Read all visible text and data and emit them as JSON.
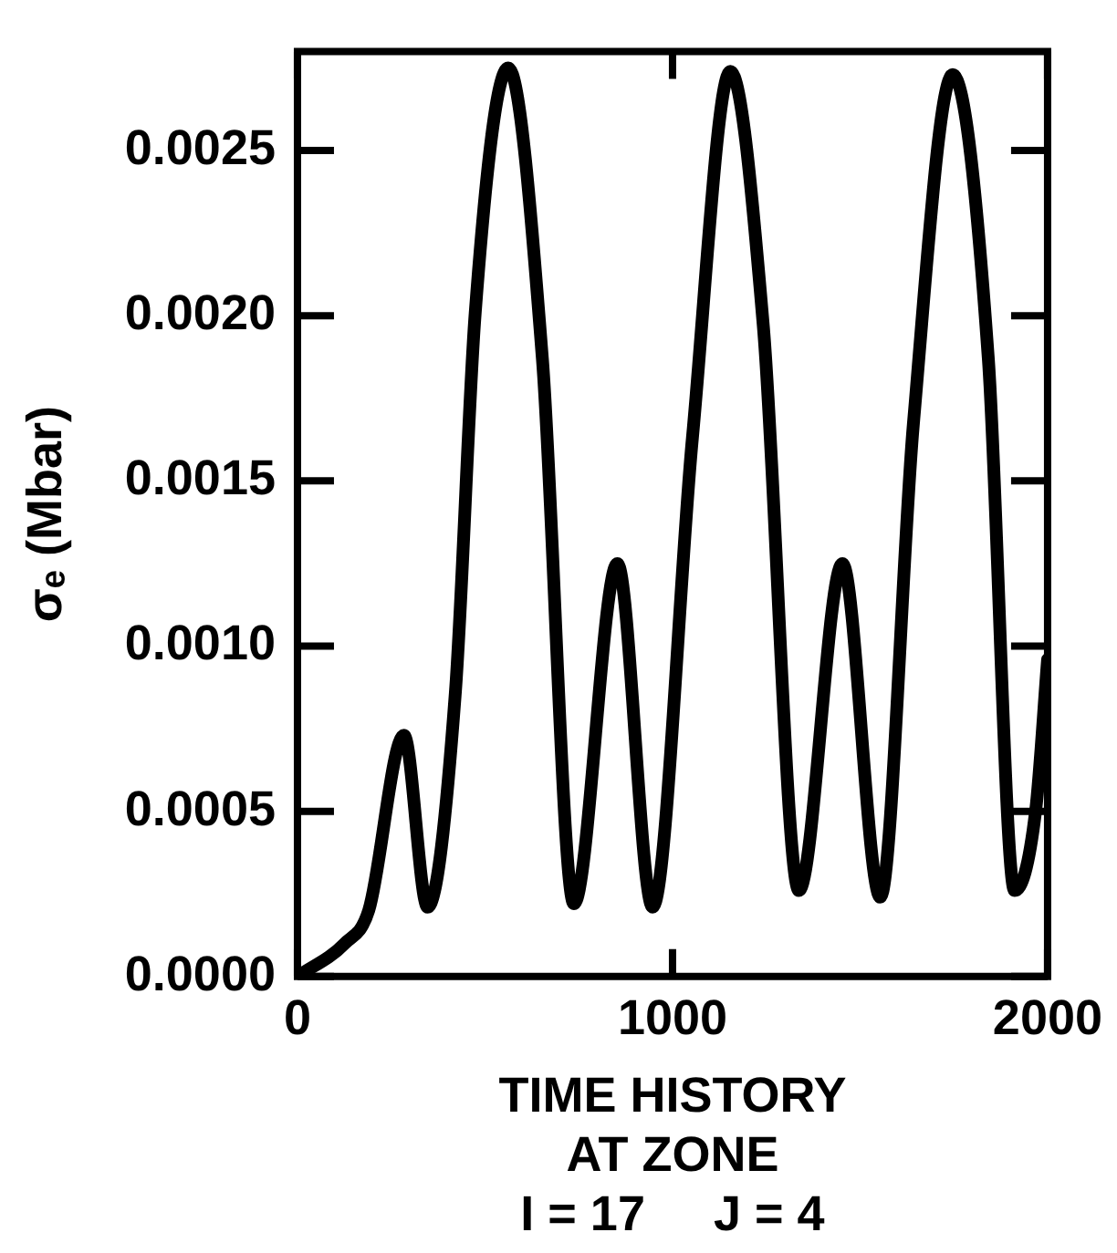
{
  "chart_data": {
    "type": "line",
    "xlabel": "TIME HISTORY\nAT ZONE\nI = 17     J = 4",
    "ylabel": "σₑ (Mbar)",
    "series": [
      {
        "color": "#000000",
        "x": [
          0,
          126,
          190,
          284,
          347,
          421,
          474,
          562,
          653,
          737,
          853,
          947,
          1053,
          1154,
          1242,
          1337,
          1453,
          1554,
          1642,
          1747,
          1842,
          1912,
          1968,
          2000
        ],
        "values": [
          0,
          0.0001,
          0.0002,
          0.00073,
          0.00021,
          0.00086,
          0.00201,
          0.00275,
          0.00187,
          0.00022,
          0.00125,
          0.00021,
          0.00163,
          0.00274,
          0.00197,
          0.00026,
          0.00125,
          0.00024,
          0.00167,
          0.00273,
          0.00187,
          0.00026,
          0.0005,
          0.00096
        ]
      }
    ],
    "xlim": [
      0,
      2000
    ],
    "xticks": [
      0,
      1000,
      2000
    ],
    "ylim": [
      0,
      0.0028
    ],
    "yticks": [
      {
        "value": 0,
        "label": "0.0000"
      },
      {
        "value": 0.0005,
        "label": "0.0005"
      },
      {
        "value": 0.001,
        "label": "0.0010"
      },
      {
        "value": 0.0015,
        "label": "0.0015"
      },
      {
        "value": 0.002,
        "label": "0.0020"
      },
      {
        "value": 0.0025,
        "label": "0.0025"
      }
    ],
    "grid": false,
    "legend": false,
    "marker": "none",
    "line_style": "solid"
  }
}
